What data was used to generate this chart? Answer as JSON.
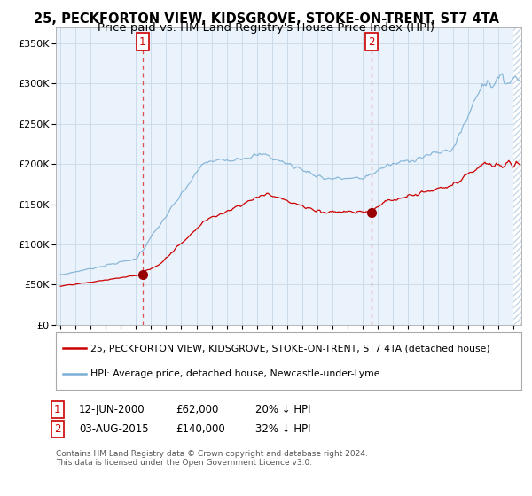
{
  "title1": "25, PECKFORTON VIEW, KIDSGROVE, STOKE-ON-TRENT, ST7 4TA",
  "title2": "Price paid vs. HM Land Registry's House Price Index (HPI)",
  "ylabel_ticks": [
    "£0",
    "£50K",
    "£100K",
    "£150K",
    "£200K",
    "£250K",
    "£300K",
    "£350K"
  ],
  "ytick_vals": [
    0,
    50000,
    100000,
    150000,
    200000,
    250000,
    300000,
    350000
  ],
  "ylim": [
    0,
    370000
  ],
  "xlim_start": 1994.7,
  "xlim_end": 2025.5,
  "purchase1_date": 2000.44,
  "purchase1_price": 62000,
  "purchase1_label": "1",
  "purchase2_date": 2015.58,
  "purchase2_price": 140000,
  "purchase2_label": "2",
  "legend_line1": "25, PECKFORTON VIEW, KIDSGROVE, STOKE-ON-TRENT, ST7 4TA (detached house)",
  "legend_line2": "HPI: Average price, detached house, Newcastle-under-Lyme",
  "footer1": "Contains HM Land Registry data © Crown copyright and database right 2024.",
  "footer2": "This data is licensed under the Open Government Licence v3.0.",
  "plot_bg": "#eaf2fb",
  "red_color": "#cc0000",
  "blue_color": "#7bafd4",
  "marker_color": "#990000",
  "grid_color": "#c8d8e8",
  "title_fontsize": 10.5,
  "subtitle_fontsize": 9.5,
  "hatch_color": "#c8d8e8"
}
